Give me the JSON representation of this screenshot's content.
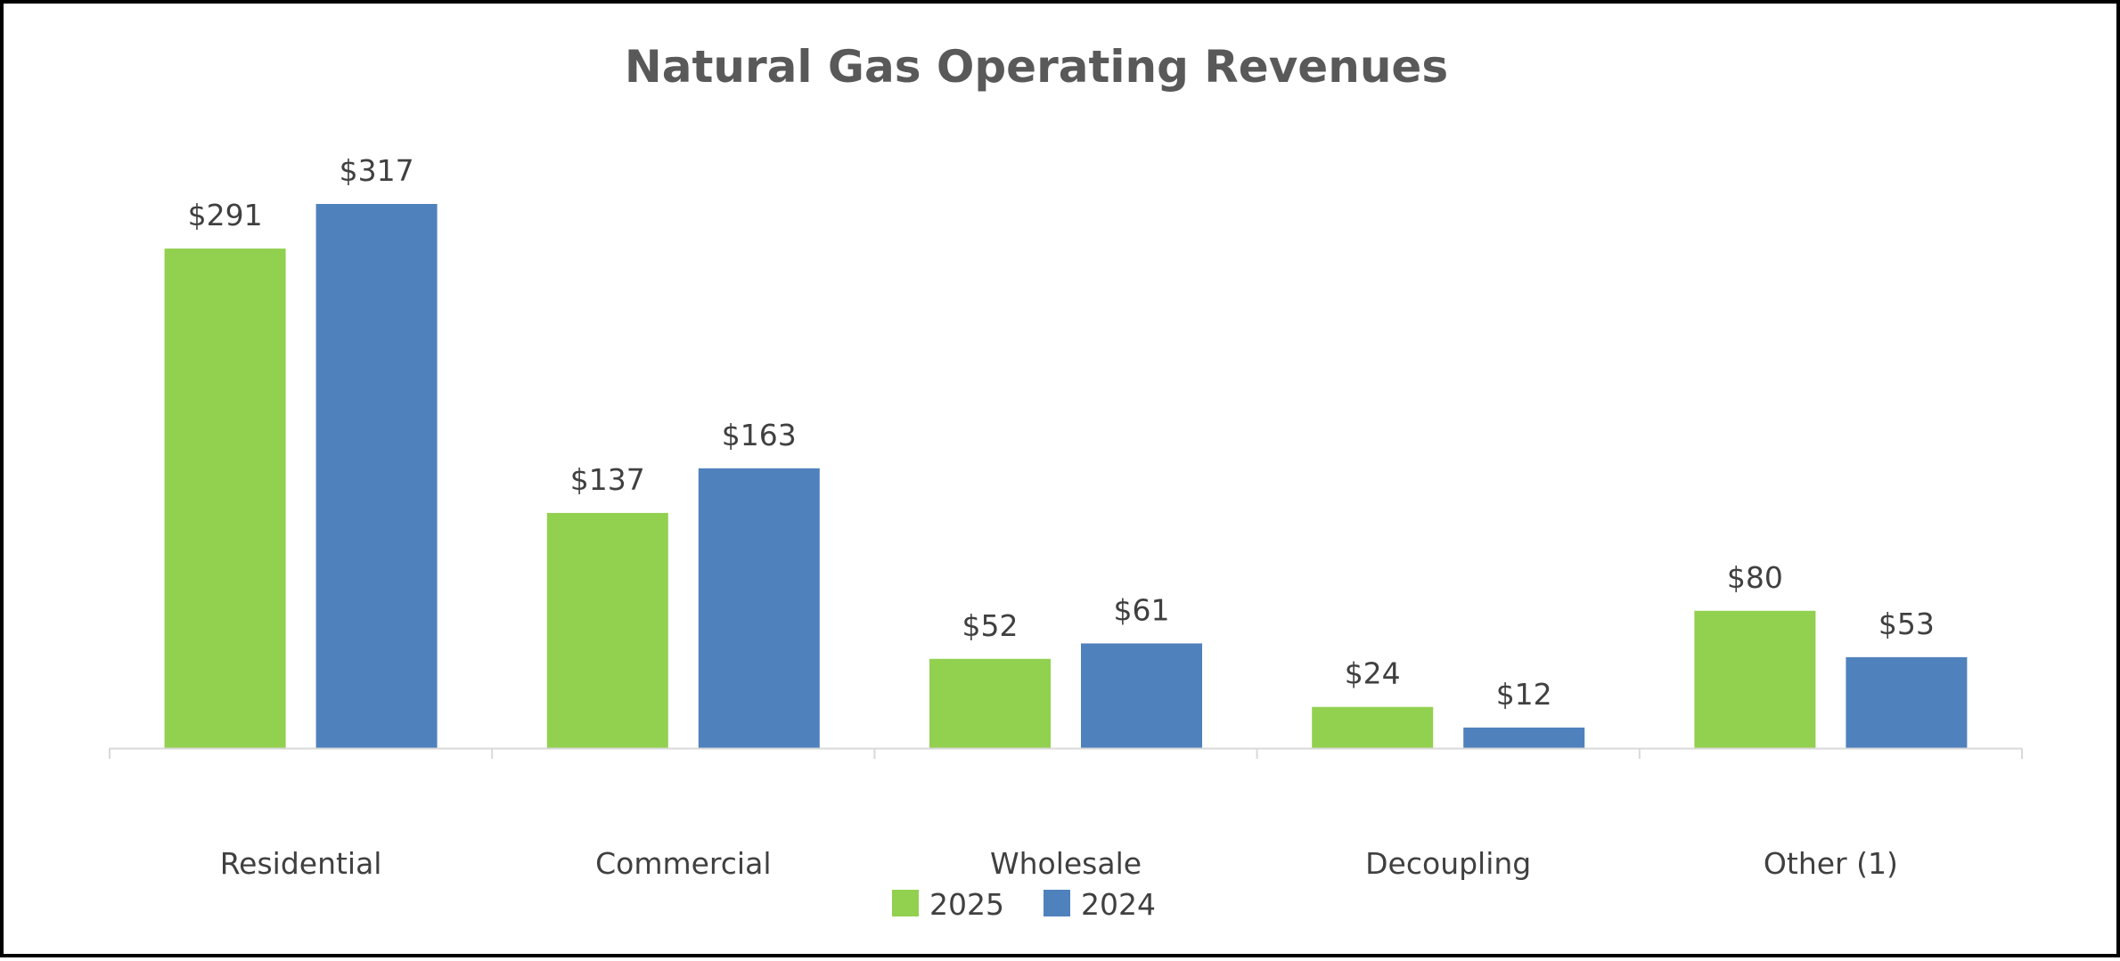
{
  "chart_data": {
    "type": "bar",
    "title": "Natural Gas Operating Revenues",
    "categories": [
      "Residential",
      "Commercial",
      "Wholesale",
      "Decoupling",
      "Other (1)"
    ],
    "series": [
      {
        "name": "2025",
        "color": "#92D050",
        "values": [
          291,
          137,
          52,
          24,
          80
        ],
        "labels": [
          "$291",
          "$137",
          "$52",
          "$24",
          "$80"
        ]
      },
      {
        "name": "2024",
        "color": "#4F81BD",
        "values": [
          317,
          163,
          61,
          12,
          53
        ],
        "labels": [
          "$317",
          "$163",
          "$61",
          "$12",
          "$53"
        ]
      }
    ],
    "ylim": [
      0,
      317
    ],
    "grid": false,
    "legend_position": "bottom"
  }
}
